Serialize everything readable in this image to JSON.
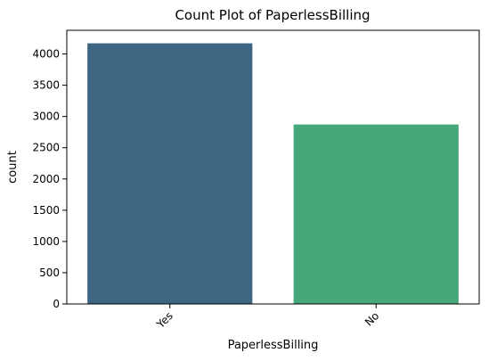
{
  "chart_data": {
    "type": "bar",
    "title": "Count Plot of PaperlessBilling",
    "xlabel": "PaperlessBilling",
    "ylabel": "count",
    "categories": [
      "Yes",
      "No"
    ],
    "values": [
      4171,
      2872
    ],
    "bar_colors": [
      "#3e6683",
      "#46a879"
    ],
    "ylim": [
      0,
      4379
    ],
    "yticks": [
      0,
      500,
      1000,
      1500,
      2000,
      2500,
      3000,
      3500,
      4000
    ],
    "grid": false,
    "legend": "none"
  }
}
